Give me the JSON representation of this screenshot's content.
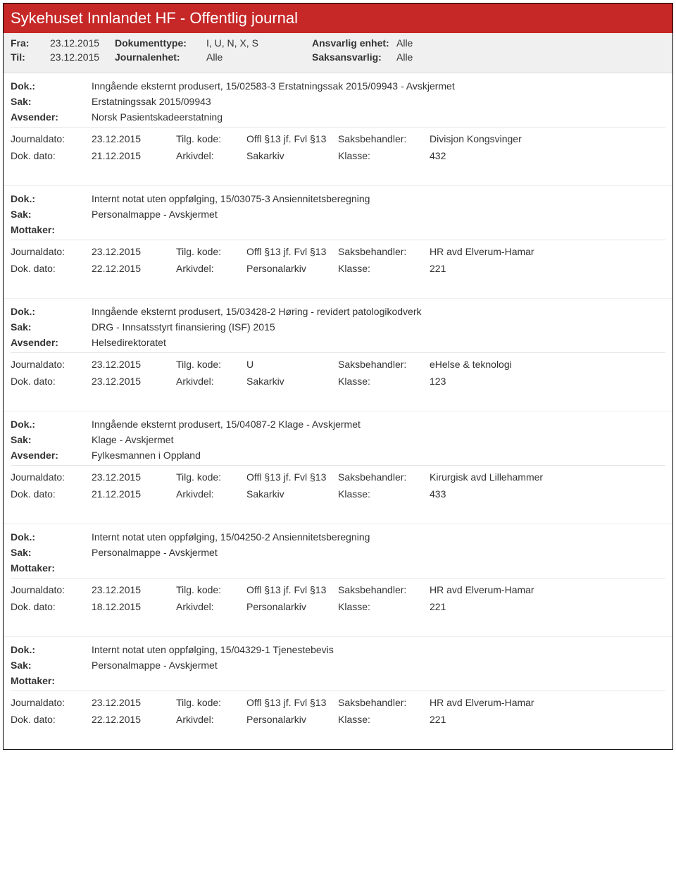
{
  "header": {
    "title": "Sykehuset Innlandet HF - Offentlig journal",
    "fra_label": "Fra:",
    "fra_val": "23.12.2015",
    "til_label": "Til:",
    "til_val": "23.12.2015",
    "doktype_label": "Dokumenttype:",
    "doktype_val": "I, U, N, X, S",
    "journalenhet_label": "Journalenhet:",
    "journalenhet_val": "Alle",
    "ansvarlig_label": "Ansvarlig enhet:",
    "ansvarlig_val": "Alle",
    "saksansvarlig_label": "Saksansvarlig:",
    "saksansvarlig_val": "Alle"
  },
  "labels": {
    "dok": "Dok.:",
    "sak": "Sak:",
    "avsender": "Avsender:",
    "mottaker": "Mottaker:",
    "journaldato": "Journaldato:",
    "dokdato": "Dok. dato:",
    "tilgkode": "Tilg. kode:",
    "arkivdel": "Arkivdel:",
    "saksbehandler": "Saksbehandler:",
    "klasse": "Klasse:"
  },
  "entries": [
    {
      "dok": "Inngående eksternt produsert, 15/02583-3 Erstatningssak 2015/09943 - Avskjermet",
      "sak": "Erstatningssak 2015/09943",
      "party_label": "Avsender:",
      "party_val": "Norsk Pasientskadeerstatning",
      "journaldato": "23.12.2015",
      "tilgkode": "Offl §13 jf. Fvl §13",
      "saksbehandler": "Divisjon Kongsvinger",
      "dokdato": "21.12.2015",
      "arkivdel": "Sakarkiv",
      "klasse": "432"
    },
    {
      "dok": "Internt notat uten oppfølging, 15/03075-3 Ansiennitetsberegning",
      "sak": "Personalmappe - Avskjermet",
      "party_label": "Mottaker:",
      "party_val": "",
      "journaldato": "23.12.2015",
      "tilgkode": "Offl §13 jf. Fvl §13",
      "saksbehandler": "HR avd Elverum-Hamar",
      "dokdato": "22.12.2015",
      "arkivdel": "Personalarkiv",
      "klasse": "221"
    },
    {
      "dok": "Inngående eksternt produsert, 15/03428-2 Høring - revidert patologikodverk",
      "sak": "DRG - Innsatsstyrt finansiering (ISF) 2015",
      "party_label": "Avsender:",
      "party_val": "Helsedirektoratet",
      "journaldato": "23.12.2015",
      "tilgkode": "U",
      "saksbehandler": "eHelse & teknologi",
      "dokdato": "23.12.2015",
      "arkivdel": "Sakarkiv",
      "klasse": "123"
    },
    {
      "dok": "Inngående eksternt produsert, 15/04087-2 Klage - Avskjermet",
      "sak": "Klage - Avskjermet",
      "party_label": "Avsender:",
      "party_val": "Fylkesmannen i Oppland",
      "journaldato": "23.12.2015",
      "tilgkode": "Offl §13 jf. Fvl §13",
      "saksbehandler": "Kirurgisk avd Lillehammer",
      "dokdato": "21.12.2015",
      "arkivdel": "Sakarkiv",
      "klasse": "433"
    },
    {
      "dok": "Internt notat uten oppfølging, 15/04250-2 Ansiennitetsberegning",
      "sak": "Personalmappe - Avskjermet",
      "party_label": "Mottaker:",
      "party_val": "",
      "journaldato": "23.12.2015",
      "tilgkode": "Offl §13 jf. Fvl §13",
      "saksbehandler": "HR avd Elverum-Hamar",
      "dokdato": "18.12.2015",
      "arkivdel": "Personalarkiv",
      "klasse": "221"
    },
    {
      "dok": "Internt notat uten oppfølging, 15/04329-1 Tjenestebevis",
      "sak": "Personalmappe - Avskjermet",
      "party_label": "Mottaker:",
      "party_val": "",
      "journaldato": "23.12.2015",
      "tilgkode": "Offl §13 jf. Fvl §13",
      "saksbehandler": "HR avd Elverum-Hamar",
      "dokdato": "22.12.2015",
      "arkivdel": "Personalarkiv",
      "klasse": "221"
    }
  ]
}
